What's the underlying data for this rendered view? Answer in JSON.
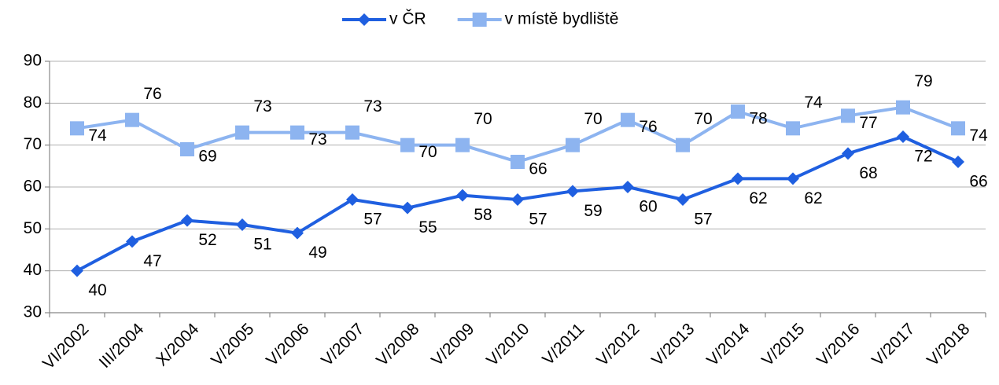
{
  "chart_data": {
    "type": "line",
    "categories": [
      "VI/2002",
      "III/2004",
      "X/2004",
      "V/2005",
      "V/2006",
      "V/2007",
      "V/2008",
      "V/2009",
      "V/2010",
      "V/2011",
      "V/2012",
      "V/2013",
      "V/2014",
      "V/2015",
      "V/2016",
      "V/2017",
      "V/2018"
    ],
    "series": [
      {
        "name": "v ČR",
        "color": "#1f5fe0",
        "marker": "diamond",
        "values": [
          40,
          47,
          52,
          51,
          49,
          57,
          55,
          58,
          57,
          59,
          60,
          57,
          62,
          62,
          68,
          72,
          66
        ]
      },
      {
        "name": "v místě bydliště",
        "color": "#8db4f0",
        "marker": "square",
        "values": [
          74,
          76,
          69,
          73,
          73,
          73,
          70,
          70,
          66,
          70,
          76,
          70,
          78,
          74,
          77,
          79,
          74
        ]
      }
    ],
    "ylim": [
      30,
      90
    ],
    "yticks": [
      30,
      40,
      50,
      60,
      70,
      80,
      90
    ],
    "grid": true,
    "legend": "top"
  }
}
